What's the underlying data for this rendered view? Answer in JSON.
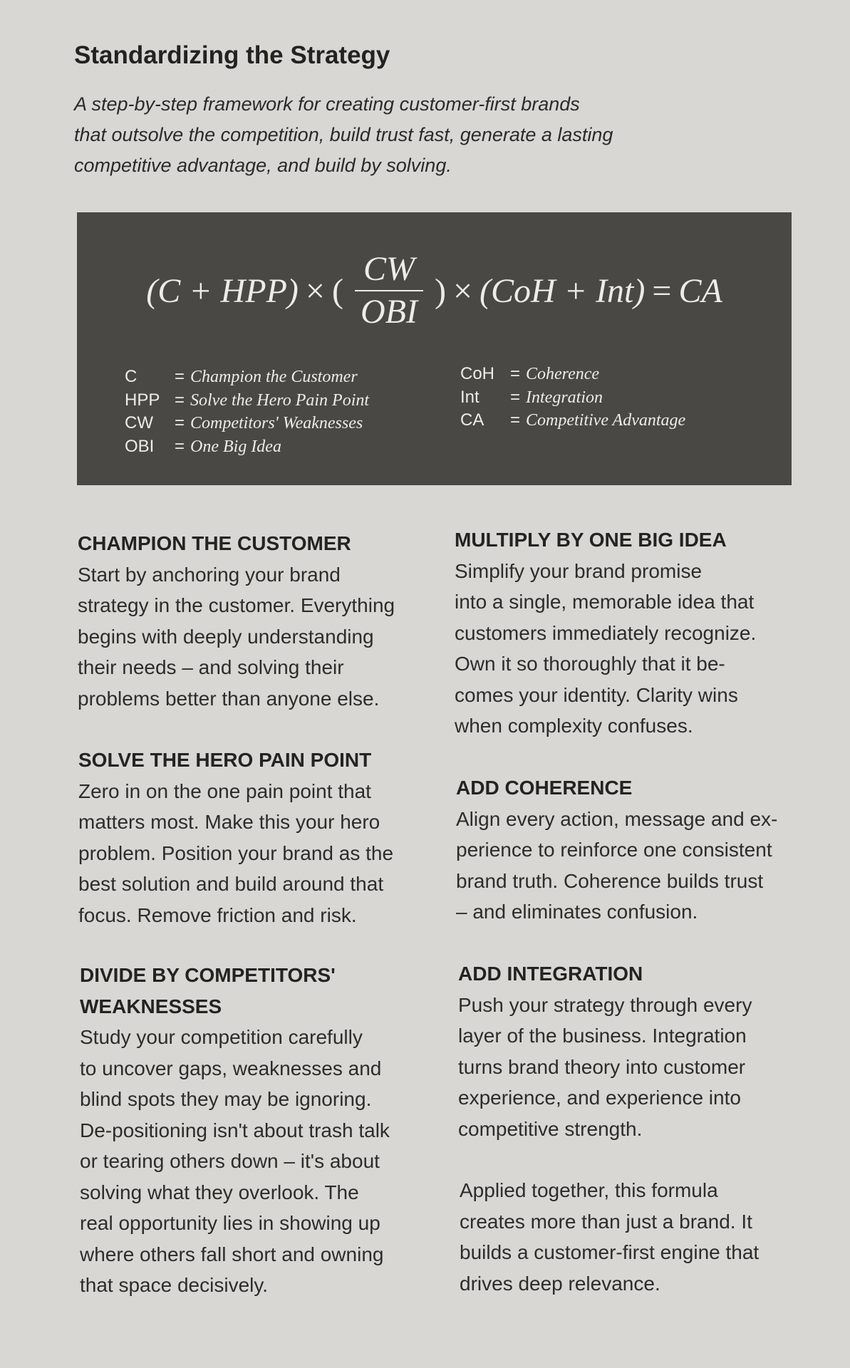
{
  "title": "Standardizing the Strategy",
  "subtitle_lines": [
    "A step-by-step framework for creating customer-first brands",
    "that outsolve the competition, build trust fast, generate a lasting",
    "competitive advantage, and build by solving."
  ],
  "formula": {
    "left": "(C + HPP)",
    "times1": "×",
    "open": "(",
    "numerator": "CW",
    "denominator": "OBI",
    "close": ")",
    "times2": "×",
    "right": "(CoH + Int)",
    "equals": "=",
    "result": "CA"
  },
  "legend_left": [
    {
      "abbr": "C",
      "eq": "=",
      "def": "Champion the Customer"
    },
    {
      "abbr": "HPP",
      "eq": "=",
      "def": "Solve the Hero Pain Point"
    },
    {
      "abbr": "CW",
      "eq": "=",
      "def": "Competitors' Weaknesses"
    },
    {
      "abbr": "OBI",
      "eq": "=",
      "def": "One Big Idea"
    }
  ],
  "legend_right": [
    {
      "abbr": "CoH",
      "eq": "=",
      "def": "Coherence"
    },
    {
      "abbr": "Int",
      "eq": "=",
      "def": "Integration"
    },
    {
      "abbr": "CA",
      "eq": "=",
      "def": "Competitive Advantage"
    }
  ],
  "sections": [
    {
      "heading": [
        "CHAMPION THE CUSTOMER"
      ],
      "lines": [
        "Start by anchoring your brand",
        "strategy in the customer. Everything",
        "begins with deeply understanding",
        "their needs – and solving their",
        "problems better than anyone else."
      ]
    },
    {
      "heading": [
        "SOLVE THE HERO PAIN POINT"
      ],
      "lines": [
        "Zero in on the one pain point that",
        "matters most. Make this your hero",
        "problem. Position your brand as the",
        "best solution and build around that",
        "focus. Remove friction and risk."
      ]
    },
    {
      "heading": [
        "DIVIDE BY COMPETITORS'",
        "WEAKNESSES"
      ],
      "lines": [
        "Study your competition carefully",
        "to uncover gaps, weaknesses and",
        "blind spots they may be ignoring.",
        "De-positioning isn't about trash talk",
        "or tearing others down – it's about",
        "solving what they overlook. The",
        "real opportunity lies in showing up",
        "where others fall short and owning",
        "that space decisively."
      ]
    },
    {
      "heading": [
        "MULTIPLY BY ONE BIG IDEA"
      ],
      "lines": [
        "Simplify your brand promise",
        "into a single, memorable idea that",
        "customers immediately recognize.",
        "Own it so thoroughly that it be-",
        "comes your identity. Clarity wins",
        "when complexity confuses."
      ]
    },
    {
      "heading": [
        "ADD COHERENCE"
      ],
      "lines": [
        "Align every action, message and ex-",
        "perience to reinforce one consistent",
        "brand truth. Coherence builds trust",
        "– and eliminates confusion."
      ]
    },
    {
      "heading": [
        "ADD INTEGRATION"
      ],
      "lines": [
        "Push your strategy through every",
        "layer of the business. Integration",
        "turns brand theory into customer",
        "experience, and experience into",
        "competitive strength."
      ]
    },
    {
      "heading": [],
      "lines": [
        "Applied together, this formula",
        "creates more than just a brand. It",
        "builds a customer-first engine that",
        "drives deep relevance."
      ]
    }
  ]
}
